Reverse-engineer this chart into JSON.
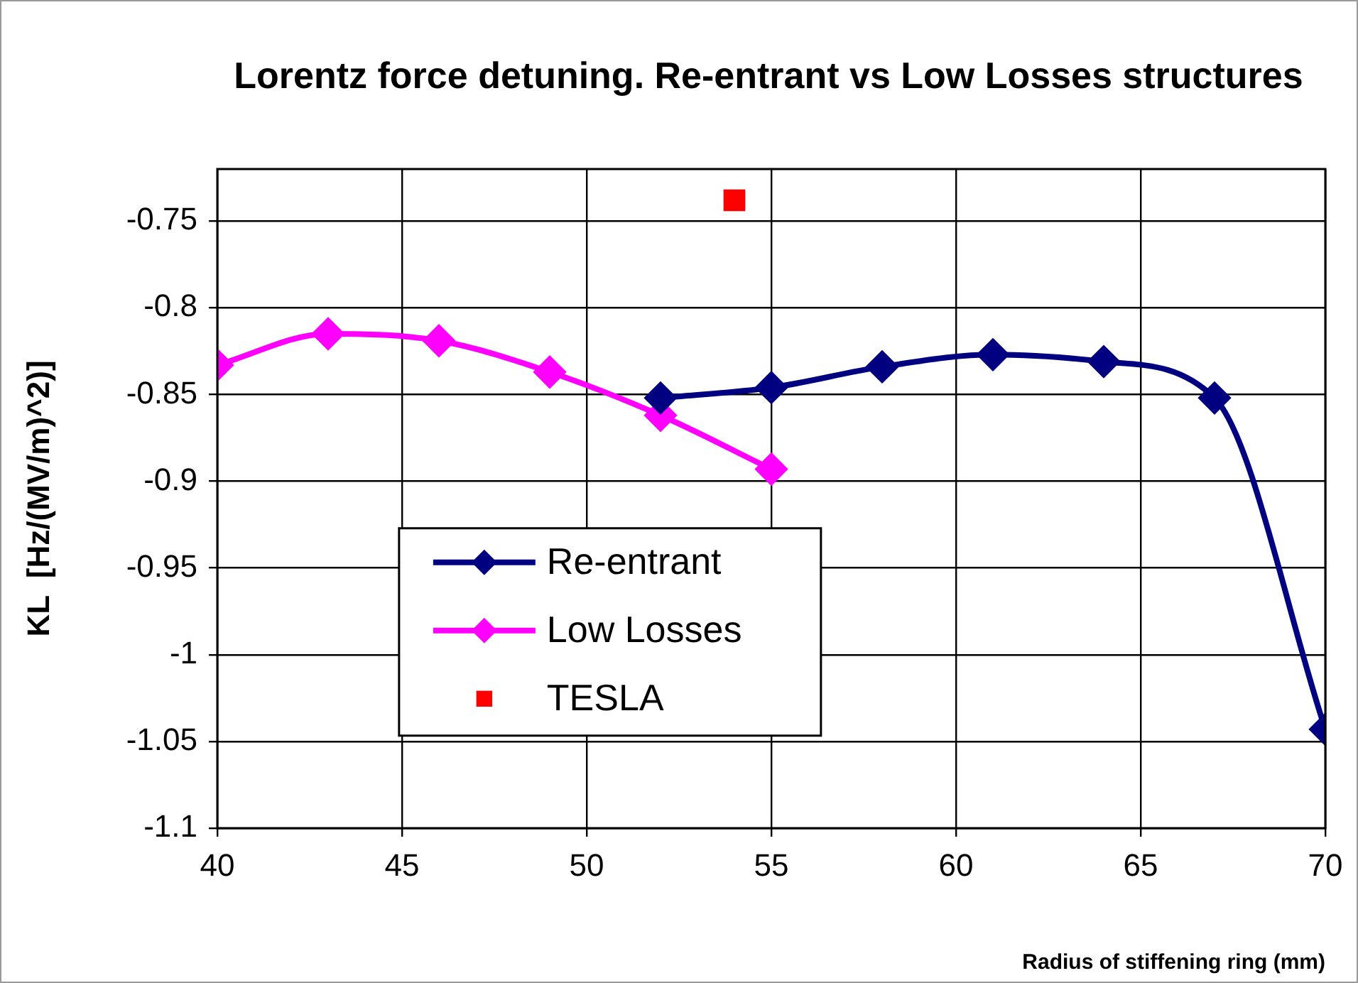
{
  "chart_data": {
    "type": "line",
    "title": "Lorentz force detuning. Re-entrant vs Low Losses structures",
    "xlabel": "Radius of stiffening ring (mm)",
    "ylabel": "KL  [Hz/(MV/m)^2)]",
    "series": [
      {
        "name": "Re-entrant",
        "color": "#000080",
        "x": [
          52,
          55,
          58,
          61,
          64,
          67,
          70
        ],
        "values": [
          -0.852,
          -0.846,
          -0.834,
          -0.827,
          -0.831,
          -0.852,
          -1.043
        ],
        "marker": "diamond"
      },
      {
        "name": "Low Losses",
        "color": "#ff00ff",
        "x": [
          40,
          43,
          46,
          49,
          52,
          55
        ],
        "values": [
          -0.833,
          -0.815,
          -0.819,
          -0.837,
          -0.862,
          -0.893
        ],
        "marker": "diamond"
      },
      {
        "name": "TESLA",
        "type": "scatter",
        "color": "#ff0000",
        "x": [
          54
        ],
        "values": [
          -0.738
        ],
        "marker": "square"
      }
    ],
    "xlim": [
      40,
      70
    ],
    "xticks": [
      40,
      45,
      50,
      55,
      60,
      65,
      70
    ],
    "ylim": [
      -1.1,
      -0.72
    ],
    "yticks": [
      -1.1,
      -1.05,
      -1,
      -0.95,
      -0.9,
      -0.85,
      -0.8,
      -0.75
    ],
    "grid": true,
    "legend": "bottom left"
  }
}
